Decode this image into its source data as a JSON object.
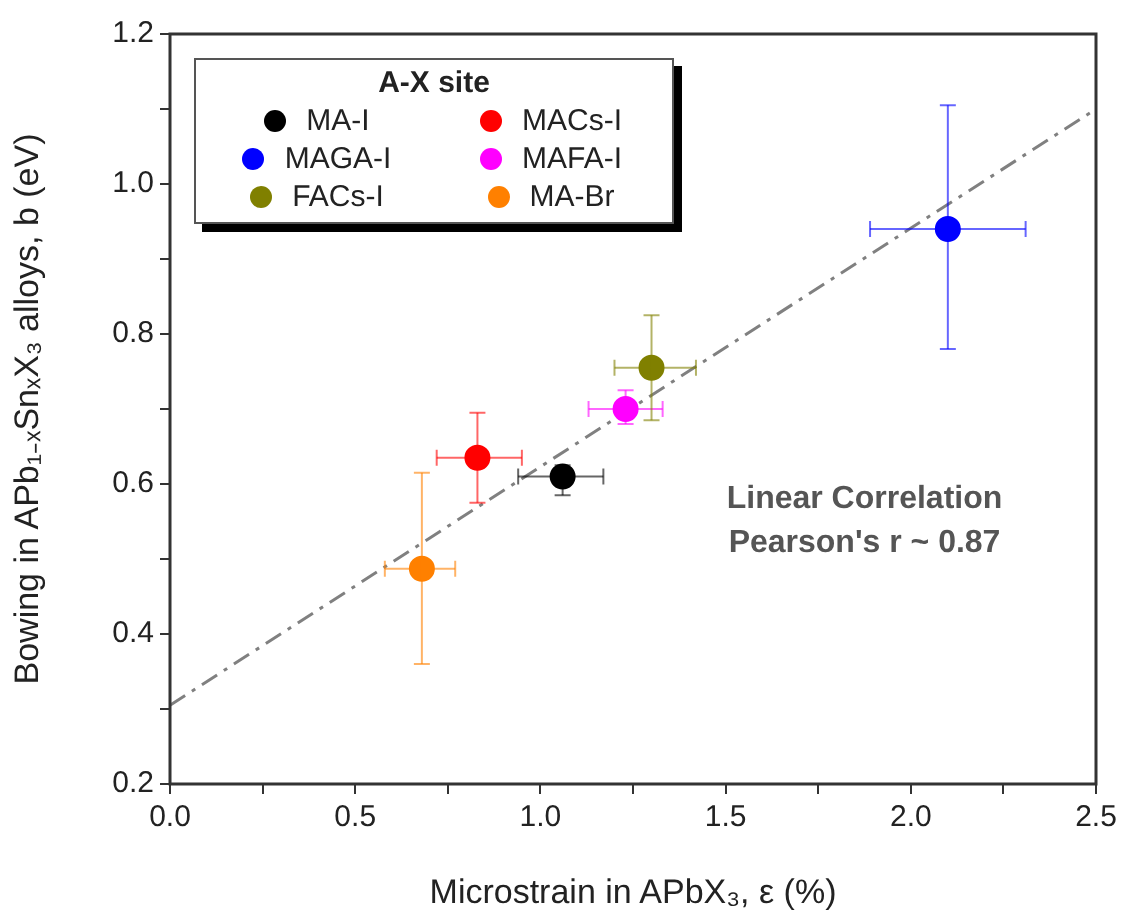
{
  "chart_data": {
    "type": "scatter",
    "xlabel": "Microstrain in APbX₃, ε (%)",
    "ylabel": "Bowing in APb₁₋ₓSnₓX₃ alloys, b (eV)",
    "legend_title": "A-X site",
    "legend": "top left",
    "marker": "circle",
    "grid": false,
    "xlim": [
      0,
      2.5
    ],
    "xticks": [
      {
        "value": 0,
        "label": "0.0"
      },
      {
        "value": 0.25,
        "label": null
      },
      {
        "value": 0.5,
        "label": "0.5"
      },
      {
        "value": 0.75,
        "label": null
      },
      {
        "value": 1,
        "label": "1.0"
      },
      {
        "value": 1.25,
        "label": null
      },
      {
        "value": 1.5,
        "label": "1.5"
      },
      {
        "value": 1.75,
        "label": null
      },
      {
        "value": 2,
        "label": "2.0"
      },
      {
        "value": 2.25,
        "label": null
      },
      {
        "value": 2.5,
        "label": "2.5"
      }
    ],
    "ylim": [
      0.2,
      1.2
    ],
    "yticks": [
      {
        "value": 0.2,
        "label": "0.2"
      },
      {
        "value": 0.3,
        "label": null
      },
      {
        "value": 0.4,
        "label": "0.4"
      },
      {
        "value": 0.5,
        "label": null
      },
      {
        "value": 0.6,
        "label": "0.6"
      },
      {
        "value": 0.7,
        "label": null
      },
      {
        "value": 0.8,
        "label": "0.8"
      },
      {
        "value": 0.9,
        "label": null
      },
      {
        "value": 1,
        "label": "1.0"
      },
      {
        "value": 1.1,
        "label": null
      },
      {
        "value": 1.2,
        "label": "1.2"
      }
    ],
    "annotations": [
      "Linear Correlation",
      "Pearson's r ~ 0.87"
    ],
    "series": [
      {
        "name": "MA-I",
        "color": "#000000",
        "x": [
          1.06
        ],
        "values": [
          0.61
        ],
        "errors": [
          [
            0.585,
            0.625
          ]
        ],
        "xerrors": [
          [
            0.94,
            1.17
          ]
        ]
      },
      {
        "name": "MACs-I",
        "color": "#ff0000",
        "x": [
          0.83
        ],
        "values": [
          0.635
        ],
        "errors": [
          [
            0.575,
            0.695
          ]
        ],
        "xerrors": [
          [
            0.72,
            0.95
          ]
        ]
      },
      {
        "name": "MAGA-I",
        "color": "#0000ff",
        "x": [
          2.1
        ],
        "values": [
          0.94
        ],
        "errors": [
          [
            0.78,
            1.105
          ]
        ],
        "xerrors": [
          [
            1.89,
            2.31
          ]
        ]
      },
      {
        "name": "MAFA-I",
        "color": "#ff00ff",
        "x": [
          1.23
        ],
        "values": [
          0.7
        ],
        "errors": [
          [
            0.68,
            0.725
          ]
        ],
        "xerrors": [
          [
            1.13,
            1.33
          ]
        ]
      },
      {
        "name": "FACs-I",
        "color": "#808000",
        "x": [
          1.3
        ],
        "values": [
          0.755
        ],
        "errors": [
          [
            0.685,
            0.825
          ]
        ],
        "xerrors": [
          [
            1.2,
            1.42
          ]
        ]
      },
      {
        "name": "MA-Br",
        "color": "#ff8000",
        "x": [
          0.68
        ],
        "values": [
          0.487
        ],
        "errors": [
          [
            0.36,
            0.615
          ]
        ],
        "xerrors": [
          [
            0.58,
            0.77
          ]
        ]
      },
      {
        "type": "line",
        "color": "#808080",
        "line_style": "dashed",
        "marker": "none",
        "x": [
          0,
          2.5
        ],
        "values": [
          0.305,
          1.1
        ]
      }
    ]
  }
}
